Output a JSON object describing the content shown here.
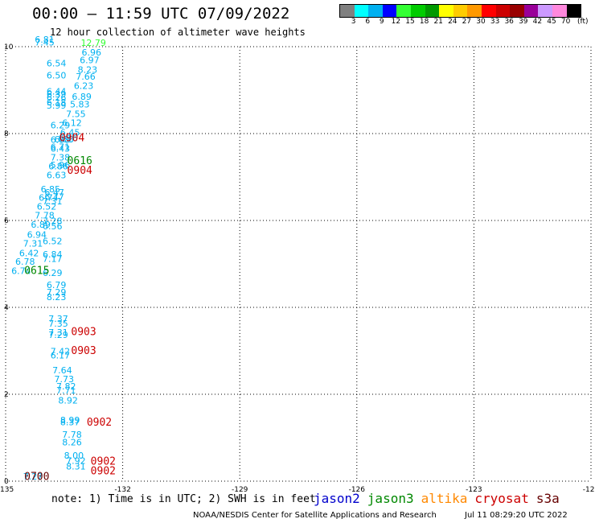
{
  "header": {
    "title": "00:00 – 11:59 UTC 07/09/2022",
    "subtitle": "12 hour collection of altimeter wave heights"
  },
  "colorbar": {
    "colors": [
      "#808080",
      "#00ffff",
      "#00b0f0",
      "#0000ff",
      "#33ff33",
      "#00cc00",
      "#009900",
      "#ffff00",
      "#ffcc00",
      "#ff9900",
      "#ff0000",
      "#cc0000",
      "#990000",
      "#990099",
      "#cc99ff",
      "#ff88dd",
      "#000000"
    ],
    "labels": [
      "3",
      "6",
      "9",
      "12",
      "15",
      "18",
      "21",
      "24",
      "27",
      "30",
      "33",
      "36",
      "39",
      "42",
      "45",
      "70"
    ],
    "unit": "(ft)"
  },
  "footer": {
    "note": "note: 1) Time is in UTC; 2) SWH is in feet",
    "credit": "NOAA/NESDIS Center for Satellite Applications and Research",
    "timestamp": "Jul 11 08:29:20 UTC 2022"
  },
  "legend": [
    {
      "name": "jason2",
      "color": "#0000cc"
    },
    {
      "name": "jason3",
      "color": "#008800"
    },
    {
      "name": "altika",
      "color": "#ff8800"
    },
    {
      "name": "cryosat",
      "color": "#cc0000"
    },
    {
      "name": "s3a",
      "color": "#660000"
    }
  ],
  "chart_data": {
    "type": "scatter",
    "xlim": [
      -135,
      -120
    ],
    "ylim": [
      0,
      10
    ],
    "x_ticks": [
      -135,
      -132,
      -129,
      -126,
      -123,
      -120
    ],
    "x_tick_labels": [
      "-135",
      "-132",
      "-129",
      "-126",
      "-123",
      "-120"
    ],
    "y_ticks": [
      0,
      2,
      4,
      6,
      8,
      10
    ],
    "y_tick_labels": [
      "0",
      "2",
      "4",
      "6",
      "8",
      "10"
    ],
    "grid": true,
    "point_colors": {
      "lt12": "#00b0f0",
      "ge12": "#33ff33"
    },
    "points": [
      {
        "x": -134.3,
        "y": 0.04,
        "v": "7.27"
      },
      {
        "x": -133.2,
        "y": 0.27,
        "v": "8.31"
      },
      {
        "x": -133.2,
        "y": 0.4,
        "v": "7.92"
      },
      {
        "x": -133.25,
        "y": 0.52,
        "v": "8.00"
      },
      {
        "x": -133.3,
        "y": 0.82,
        "v": "8.26"
      },
      {
        "x": -133.3,
        "y": 1.0,
        "v": "7.78"
      },
      {
        "x": -133.35,
        "y": 1.29,
        "v": "8.37"
      },
      {
        "x": -133.35,
        "y": 1.33,
        "v": "8.99"
      },
      {
        "x": -133.4,
        "y": 1.79,
        "v": "8.92"
      },
      {
        "x": -133.45,
        "y": 2.02,
        "v": "7.71"
      },
      {
        "x": -133.45,
        "y": 2.11,
        "v": "7.82"
      },
      {
        "x": -133.5,
        "y": 2.28,
        "v": "7.73"
      },
      {
        "x": -133.55,
        "y": 2.48,
        "v": "7.64"
      },
      {
        "x": -133.6,
        "y": 2.82,
        "v": "6.17"
      },
      {
        "x": -133.6,
        "y": 2.92,
        "v": "7.42"
      },
      {
        "x": -133.65,
        "y": 3.3,
        "v": "7.29"
      },
      {
        "x": -133.65,
        "y": 3.35,
        "v": "7.31"
      },
      {
        "x": -133.65,
        "y": 3.56,
        "v": "7.35"
      },
      {
        "x": -133.65,
        "y": 3.67,
        "v": "7.37"
      },
      {
        "x": -133.7,
        "y": 4.17,
        "v": "8.23"
      },
      {
        "x": -133.7,
        "y": 4.28,
        "v": "7.29"
      },
      {
        "x": -133.7,
        "y": 4.44,
        "v": "6.79"
      },
      {
        "x": -133.8,
        "y": 4.72,
        "v": "6.29"
      },
      {
        "x": -134.6,
        "y": 4.77,
        "v": "6.74"
      },
      {
        "x": -134.5,
        "y": 4.98,
        "v": "6.78"
      },
      {
        "x": -133.8,
        "y": 5.05,
        "v": "7.17"
      },
      {
        "x": -133.8,
        "y": 5.15,
        "v": "6.84"
      },
      {
        "x": -134.4,
        "y": 5.18,
        "v": "6.42"
      },
      {
        "x": -134.3,
        "y": 5.4,
        "v": "7.31"
      },
      {
        "x": -133.8,
        "y": 5.45,
        "v": "6.52"
      },
      {
        "x": -134.2,
        "y": 5.6,
        "v": "6.94"
      },
      {
        "x": -133.8,
        "y": 5.8,
        "v": "6.56"
      },
      {
        "x": -134.1,
        "y": 5.83,
        "v": "6.89"
      },
      {
        "x": -133.8,
        "y": 5.92,
        "v": "7.28"
      },
      {
        "x": -134.0,
        "y": 6.05,
        "v": "7.78"
      },
      {
        "x": -133.95,
        "y": 6.25,
        "v": "6.52"
      },
      {
        "x": -133.8,
        "y": 6.37,
        "v": "7.31"
      },
      {
        "x": -133.9,
        "y": 6.45,
        "v": "6.74"
      },
      {
        "x": -133.75,
        "y": 6.47,
        "v": "6.77"
      },
      {
        "x": -133.75,
        "y": 6.57,
        "v": "6.47"
      },
      {
        "x": -133.85,
        "y": 6.65,
        "v": "6.85"
      },
      {
        "x": -133.7,
        "y": 6.97,
        "v": "6.63"
      },
      {
        "x": -133.65,
        "y": 7.18,
        "v": "6.86"
      },
      {
        "x": -133.6,
        "y": 7.2,
        "v": "5.96"
      },
      {
        "x": -133.6,
        "y": 7.38,
        "v": "7.38"
      },
      {
        "x": -133.6,
        "y": 7.58,
        "v": "6.43"
      },
      {
        "x": -133.6,
        "y": 7.62,
        "v": "6.71"
      },
      {
        "x": -133.6,
        "y": 7.79,
        "v": "6.88"
      },
      {
        "x": -133.5,
        "y": 7.8,
        "v": "6.83"
      },
      {
        "x": -133.4,
        "y": 7.82,
        "v": "6.16"
      },
      {
        "x": -133.35,
        "y": 7.95,
        "v": "6.45"
      },
      {
        "x": -133.6,
        "y": 8.12,
        "v": "6.29"
      },
      {
        "x": -133.3,
        "y": 8.18,
        "v": "6.12"
      },
      {
        "x": -133.2,
        "y": 8.38,
        "v": "7.55"
      },
      {
        "x": -133.7,
        "y": 8.57,
        "v": "5.99"
      },
      {
        "x": -133.7,
        "y": 8.65,
        "v": "6.18"
      },
      {
        "x": -133.7,
        "y": 8.76,
        "v": "6.26"
      },
      {
        "x": -133.7,
        "y": 8.83,
        "v": "6.39"
      },
      {
        "x": -133.7,
        "y": 8.9,
        "v": "6.44"
      },
      {
        "x": -133.1,
        "y": 8.6,
        "v": "5.83"
      },
      {
        "x": -133.05,
        "y": 8.78,
        "v": "6.89"
      },
      {
        "x": -133.0,
        "y": 9.03,
        "v": "6.23"
      },
      {
        "x": -132.95,
        "y": 9.24,
        "v": "7.66"
      },
      {
        "x": -133.7,
        "y": 9.27,
        "v": "6.50"
      },
      {
        "x": -132.9,
        "y": 9.4,
        "v": "8.23"
      },
      {
        "x": -133.7,
        "y": 9.55,
        "v": "6.54"
      },
      {
        "x": -132.85,
        "y": 9.62,
        "v": "6.97"
      },
      {
        "x": -132.8,
        "y": 9.8,
        "v": "6.96"
      },
      {
        "x": -134.0,
        "y": 10.03,
        "v": "7.45"
      },
      {
        "x": -134.0,
        "y": 10.09,
        "v": "6.81"
      },
      {
        "x": -132.75,
        "y": 10.02,
        "v": "12.79"
      }
    ],
    "satellite_labels": [
      {
        "x": -134.2,
        "y": 0.03,
        "t": "0700",
        "sat": "s3a"
      },
      {
        "x": -132.5,
        "y": 0.16,
        "t": "0902",
        "sat": "cryosat"
      },
      {
        "x": -132.5,
        "y": 0.38,
        "t": "0902",
        "sat": "cryosat"
      },
      {
        "x": -132.6,
        "y": 1.28,
        "t": "0902",
        "sat": "cryosat"
      },
      {
        "x": -133.0,
        "y": 2.93,
        "t": "0903",
        "sat": "cryosat"
      },
      {
        "x": -133.0,
        "y": 3.36,
        "t": "0903",
        "sat": "cryosat"
      },
      {
        "x": -134.2,
        "y": 4.77,
        "t": "0615",
        "sat": "jason3"
      },
      {
        "x": -133.1,
        "y": 7.07,
        "t": "0904",
        "sat": "cryosat"
      },
      {
        "x": -133.1,
        "y": 7.3,
        "t": "0616",
        "sat": "jason3"
      },
      {
        "x": -133.3,
        "y": 7.82,
        "t": "0904",
        "sat": "cryosat"
      }
    ]
  }
}
